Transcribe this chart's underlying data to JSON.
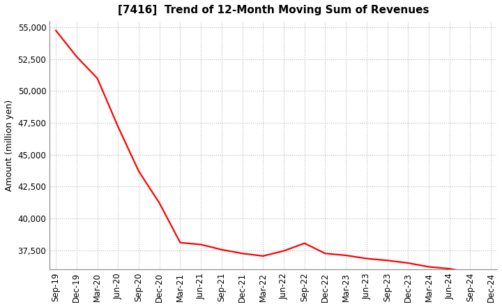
{
  "title": "[7416]  Trend of 12-Month Moving Sum of Revenues",
  "ylabel": "Amount (million yen)",
  "line_color": "#ff0000",
  "background_color": "#ffffff",
  "grid_color": "#b0b0b0",
  "x_labels": [
    "Sep-19",
    "Dec-19",
    "Mar-20",
    "Jun-20",
    "Sep-20",
    "Dec-20",
    "Mar-21",
    "Jun-21",
    "Sep-21",
    "Dec-21",
    "Mar-22",
    "Jun-22",
    "Sep-22",
    "Dec-22",
    "Mar-23",
    "Jun-23",
    "Sep-23",
    "Dec-23",
    "Mar-24",
    "Jun-24",
    "Sep-24",
    "Dec-24"
  ],
  "y_values": [
    54750,
    52700,
    51000,
    47200,
    43700,
    41200,
    38100,
    37950,
    37550,
    37250,
    37050,
    37450,
    38050,
    37250,
    37100,
    36850,
    36700,
    36500,
    36200,
    36050,
    35750,
    35650
  ],
  "ylim_min": 36000,
  "ylim_max": 55500,
  "yticks": [
    37500,
    40000,
    42500,
    45000,
    47500,
    50000,
    52500,
    55000
  ],
  "title_fontsize": 11,
  "tick_fontsize": 8.5,
  "ylabel_fontsize": 9
}
